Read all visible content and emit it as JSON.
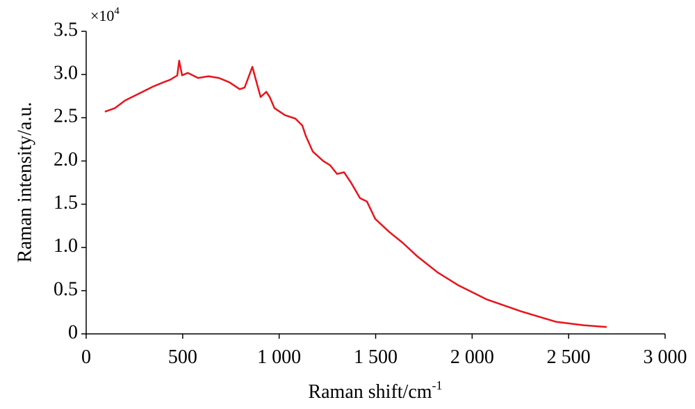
{
  "chart_data": {
    "type": "line",
    "xlabel": "Raman shift/cm",
    "xlabel_superscript": "-1",
    "ylabel": "Raman intensity/a.u.",
    "y_scale_label": "×10",
    "y_scale_exponent": "4",
    "xlim": [
      0,
      3000
    ],
    "xticks": [
      0,
      500,
      {
        "value": 1000,
        "label": "1 000"
      },
      {
        "value": 1500,
        "label": "1 500"
      },
      {
        "value": 2000,
        "label": "2 000"
      },
      {
        "value": 2500,
        "label": "2 500"
      },
      {
        "value": 3000,
        "label": "3 000"
      }
    ],
    "ylim": [
      0,
      3.5
    ],
    "yticks": [
      0,
      0.5,
      {
        "value": 1,
        "label": "1.0"
      },
      1.5,
      {
        "value": 2,
        "label": "2.0"
      },
      2.5,
      {
        "value": 3,
        "label": "3.0"
      },
      3.5
    ],
    "grid": false,
    "x": [
      97,
      148,
      202,
      274,
      346,
      400,
      436,
      472,
      482,
      497,
      526,
      580,
      634,
      688,
      742,
      796,
      821,
      843,
      861,
      879,
      904,
      933,
      951,
      976,
      1030,
      1084,
      1120,
      1138,
      1174,
      1228,
      1264,
      1300,
      1336,
      1372,
      1419,
      1455,
      1498,
      1570,
      1642,
      1714,
      1822,
      1930,
      2074,
      2254,
      2434,
      2579,
      2697
    ],
    "series": [
      {
        "color": "#e8141b",
        "values": [
          2.57,
          2.61,
          2.7,
          2.78,
          2.86,
          2.91,
          2.94,
          2.99,
          3.16,
          2.99,
          3.02,
          2.96,
          2.98,
          2.96,
          2.91,
          2.83,
          2.85,
          2.98,
          3.09,
          2.94,
          2.74,
          2.8,
          2.74,
          2.61,
          2.53,
          2.49,
          2.41,
          2.29,
          2.11,
          2.0,
          1.95,
          1.85,
          1.87,
          1.75,
          1.57,
          1.53,
          1.33,
          1.18,
          1.05,
          0.9,
          0.71,
          0.56,
          0.4,
          0.26,
          0.14,
          0.1,
          0.08
        ]
      }
    ]
  }
}
